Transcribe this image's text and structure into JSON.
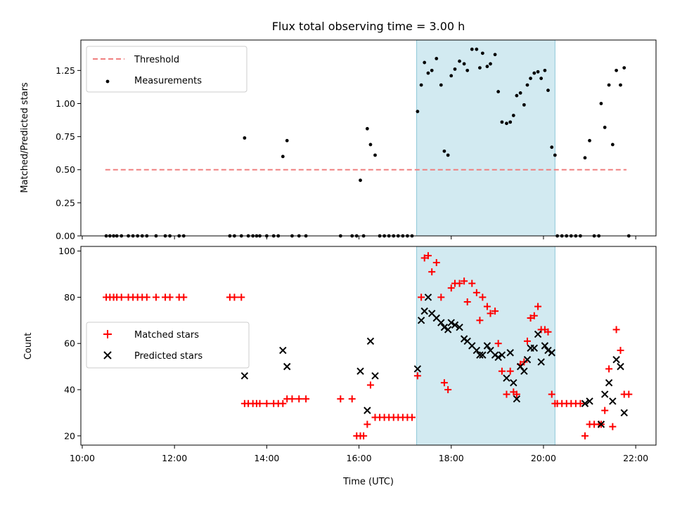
{
  "chart_data": [
    {
      "type": "scatter",
      "title": "Flux total observing time = 3.00 h",
      "xlabel": "",
      "ylabel": "Matched/Predicted stars",
      "xlim_hours": [
        9.97,
        22.44
      ],
      "ylim": [
        0,
        1.48
      ],
      "yticks": [
        0.0,
        0.25,
        0.5,
        0.75,
        1.0,
        1.25
      ],
      "ytick_labels": [
        "0.00",
        "0.25",
        "0.50",
        "0.75",
        "1.00",
        "1.25"
      ],
      "shaded_span_hours": [
        17.25,
        20.25
      ],
      "threshold": {
        "name": "Threshold",
        "y": 0.5,
        "x_range_hours": [
          10.5,
          21.8
        ],
        "color": "#f08080"
      },
      "legend_location": "upper-left",
      "series": [
        {
          "name": "Measurements",
          "color": "#000000",
          "points": [
            [
              10.52,
              0
            ],
            [
              10.6,
              0
            ],
            [
              10.68,
              0
            ],
            [
              10.75,
              0
            ],
            [
              10.85,
              0
            ],
            [
              11.0,
              0
            ],
            [
              11.1,
              0
            ],
            [
              11.2,
              0
            ],
            [
              11.3,
              0
            ],
            [
              11.4,
              0
            ],
            [
              11.6,
              0
            ],
            [
              11.8,
              0
            ],
            [
              11.9,
              0
            ],
            [
              12.1,
              0
            ],
            [
              12.2,
              0
            ],
            [
              13.2,
              0
            ],
            [
              13.3,
              0
            ],
            [
              13.45,
              0
            ],
            [
              13.52,
              0.74
            ],
            [
              13.6,
              0
            ],
            [
              13.7,
              0
            ],
            [
              13.78,
              0
            ],
            [
              13.85,
              0
            ],
            [
              14.0,
              0
            ],
            [
              14.15,
              0
            ],
            [
              14.25,
              0
            ],
            [
              14.35,
              0.6
            ],
            [
              14.44,
              0.72
            ],
            [
              14.55,
              0
            ],
            [
              14.7,
              0
            ],
            [
              14.85,
              0
            ],
            [
              15.6,
              0
            ],
            [
              15.85,
              0
            ],
            [
              15.95,
              0
            ],
            [
              16.03,
              0.42
            ],
            [
              16.1,
              0
            ],
            [
              16.18,
              0.81
            ],
            [
              16.25,
              0.69
            ],
            [
              16.35,
              0.61
            ],
            [
              16.45,
              0
            ],
            [
              16.55,
              0
            ],
            [
              16.65,
              0
            ],
            [
              16.75,
              0
            ],
            [
              16.85,
              0
            ],
            [
              16.95,
              0
            ],
            [
              17.05,
              0
            ],
            [
              17.15,
              0
            ],
            [
              17.27,
              0.94
            ],
            [
              17.35,
              1.14
            ],
            [
              17.42,
              1.31
            ],
            [
              17.5,
              1.23
            ],
            [
              17.58,
              1.25
            ],
            [
              17.68,
              1.34
            ],
            [
              17.78,
              1.14
            ],
            [
              17.85,
              0.64
            ],
            [
              17.93,
              0.61
            ],
            [
              18.0,
              1.21
            ],
            [
              18.08,
              1.26
            ],
            [
              18.18,
              1.32
            ],
            [
              18.28,
              1.3
            ],
            [
              18.35,
              1.25
            ],
            [
              18.45,
              1.41
            ],
            [
              18.55,
              1.41
            ],
            [
              18.62,
              1.27
            ],
            [
              18.68,
              1.38
            ],
            [
              18.78,
              1.28
            ],
            [
              18.85,
              1.3
            ],
            [
              18.95,
              1.37
            ],
            [
              19.02,
              1.09
            ],
            [
              19.1,
              0.86
            ],
            [
              19.2,
              0.85
            ],
            [
              19.28,
              0.86
            ],
            [
              19.35,
              0.91
            ],
            [
              19.42,
              1.06
            ],
            [
              19.5,
              1.08
            ],
            [
              19.58,
              0.99
            ],
            [
              19.65,
              1.14
            ],
            [
              19.72,
              1.19
            ],
            [
              19.8,
              1.23
            ],
            [
              19.88,
              1.24
            ],
            [
              19.95,
              1.19
            ],
            [
              20.03,
              1.25
            ],
            [
              20.1,
              1.1
            ],
            [
              20.18,
              0.67
            ],
            [
              20.25,
              0.61
            ],
            [
              20.3,
              0
            ],
            [
              20.4,
              0
            ],
            [
              20.5,
              0
            ],
            [
              20.6,
              0
            ],
            [
              20.7,
              0
            ],
            [
              20.8,
              0
            ],
            [
              20.9,
              0.59
            ],
            [
              21.0,
              0.72
            ],
            [
              21.1,
              0
            ],
            [
              21.2,
              0
            ],
            [
              21.25,
              1.0
            ],
            [
              21.33,
              0.82
            ],
            [
              21.42,
              1.14
            ],
            [
              21.5,
              0.69
            ],
            [
              21.58,
              1.25
            ],
            [
              21.67,
              1.14
            ],
            [
              21.75,
              1.27
            ],
            [
              21.85,
              0
            ]
          ]
        }
      ]
    },
    {
      "type": "scatter",
      "title": "",
      "xlabel": "Time (UTC)",
      "ylabel": "Count",
      "xlim_hours": [
        9.97,
        22.44
      ],
      "ylim": [
        16,
        102
      ],
      "yticks": [
        20,
        40,
        60,
        80,
        100
      ],
      "ytick_labels": [
        "20",
        "40",
        "60",
        "80",
        "100"
      ],
      "xticks_hours": [
        10,
        12,
        14,
        16,
        18,
        20,
        22
      ],
      "xtick_labels": [
        "10:00",
        "12:00",
        "14:00",
        "16:00",
        "18:00",
        "20:00",
        "22:00"
      ],
      "shaded_span_hours": [
        17.25,
        20.25
      ],
      "legend_location": "center-left",
      "series": [
        {
          "name": "Matched stars",
          "marker": "plus",
          "color": "#ff0000",
          "points": [
            [
              10.52,
              80
            ],
            [
              10.6,
              80
            ],
            [
              10.68,
              80
            ],
            [
              10.75,
              80
            ],
            [
              10.85,
              80
            ],
            [
              11.0,
              80
            ],
            [
              11.1,
              80
            ],
            [
              11.2,
              80
            ],
            [
              11.3,
              80
            ],
            [
              11.4,
              80
            ],
            [
              11.6,
              80
            ],
            [
              11.8,
              80
            ],
            [
              11.9,
              80
            ],
            [
              12.1,
              80
            ],
            [
              12.2,
              80
            ],
            [
              13.2,
              80
            ],
            [
              13.3,
              80
            ],
            [
              13.45,
              80
            ],
            [
              13.52,
              34
            ],
            [
              13.6,
              34
            ],
            [
              13.7,
              34
            ],
            [
              13.78,
              34
            ],
            [
              13.85,
              34
            ],
            [
              14.0,
              34
            ],
            [
              14.15,
              34
            ],
            [
              14.25,
              34
            ],
            [
              14.35,
              34
            ],
            [
              14.44,
              36
            ],
            [
              14.55,
              36
            ],
            [
              14.7,
              36
            ],
            [
              14.85,
              36
            ],
            [
              15.6,
              36
            ],
            [
              15.85,
              36
            ],
            [
              15.95,
              20
            ],
            [
              16.03,
              20
            ],
            [
              16.1,
              20
            ],
            [
              16.18,
              25
            ],
            [
              16.25,
              42
            ],
            [
              16.35,
              28
            ],
            [
              16.45,
              28
            ],
            [
              16.55,
              28
            ],
            [
              16.65,
              28
            ],
            [
              16.75,
              28
            ],
            [
              16.85,
              28
            ],
            [
              16.95,
              28
            ],
            [
              17.05,
              28
            ],
            [
              17.15,
              28
            ],
            [
              17.27,
              46
            ],
            [
              17.35,
              80
            ],
            [
              17.42,
              97
            ],
            [
              17.5,
              98
            ],
            [
              17.58,
              91
            ],
            [
              17.68,
              95
            ],
            [
              17.78,
              80
            ],
            [
              17.85,
              43
            ],
            [
              17.93,
              40
            ],
            [
              18.0,
              84
            ],
            [
              18.08,
              86
            ],
            [
              18.18,
              86
            ],
            [
              18.28,
              87
            ],
            [
              18.35,
              78
            ],
            [
              18.45,
              86
            ],
            [
              18.55,
              82
            ],
            [
              18.62,
              70
            ],
            [
              18.68,
              80
            ],
            [
              18.78,
              76
            ],
            [
              18.85,
              73
            ],
            [
              18.95,
              74
            ],
            [
              19.02,
              60
            ],
            [
              19.1,
              48
            ],
            [
              19.2,
              38
            ],
            [
              19.28,
              48
            ],
            [
              19.35,
              39
            ],
            [
              19.42,
              38
            ],
            [
              19.5,
              51
            ],
            [
              19.58,
              52
            ],
            [
              19.65,
              61
            ],
            [
              19.72,
              71
            ],
            [
              19.8,
              72
            ],
            [
              19.88,
              76
            ],
            [
              19.95,
              66
            ],
            [
              20.03,
              66
            ],
            [
              20.1,
              65
            ],
            [
              20.18,
              38
            ],
            [
              20.25,
              34
            ],
            [
              20.3,
              34
            ],
            [
              20.4,
              34
            ],
            [
              20.5,
              34
            ],
            [
              20.6,
              34
            ],
            [
              20.7,
              34
            ],
            [
              20.8,
              34
            ],
            [
              20.9,
              20
            ],
            [
              21.0,
              25
            ],
            [
              21.1,
              25
            ],
            [
              21.2,
              25
            ],
            [
              21.25,
              25
            ],
            [
              21.33,
              31
            ],
            [
              21.42,
              49
            ],
            [
              21.5,
              24
            ],
            [
              21.58,
              66
            ],
            [
              21.67,
              57
            ],
            [
              21.75,
              38
            ],
            [
              21.85,
              38
            ]
          ]
        },
        {
          "name": "Predicted stars",
          "marker": "x",
          "color": "#000000",
          "points": [
            [
              13.52,
              46
            ],
            [
              14.35,
              57
            ],
            [
              14.44,
              50
            ],
            [
              16.03,
              48
            ],
            [
              16.18,
              31
            ],
            [
              16.25,
              61
            ],
            [
              16.35,
              46
            ],
            [
              17.27,
              49
            ],
            [
              17.35,
              70
            ],
            [
              17.42,
              74
            ],
            [
              17.5,
              80
            ],
            [
              17.58,
              73
            ],
            [
              17.68,
              71
            ],
            [
              17.78,
              69
            ],
            [
              17.85,
              67
            ],
            [
              17.93,
              66
            ],
            [
              18.0,
              69
            ],
            [
              18.08,
              68
            ],
            [
              18.18,
              67
            ],
            [
              18.28,
              62
            ],
            [
              18.35,
              61
            ],
            [
              18.45,
              59
            ],
            [
              18.55,
              57
            ],
            [
              18.62,
              55
            ],
            [
              18.68,
              55
            ],
            [
              18.78,
              59
            ],
            [
              18.85,
              57
            ],
            [
              18.95,
              55
            ],
            [
              19.02,
              54
            ],
            [
              19.1,
              55
            ],
            [
              19.2,
              45
            ],
            [
              19.28,
              56
            ],
            [
              19.35,
              43
            ],
            [
              19.42,
              36
            ],
            [
              19.5,
              50
            ],
            [
              19.58,
              48
            ],
            [
              19.65,
              53
            ],
            [
              19.72,
              58
            ],
            [
              19.8,
              58
            ],
            [
              19.88,
              64
            ],
            [
              19.95,
              52
            ],
            [
              20.03,
              59
            ],
            [
              20.1,
              57
            ],
            [
              20.18,
              56
            ],
            [
              20.9,
              34
            ],
            [
              21.0,
              35
            ],
            [
              21.25,
              25
            ],
            [
              21.33,
              38
            ],
            [
              21.42,
              43
            ],
            [
              21.5,
              35
            ],
            [
              21.58,
              53
            ],
            [
              21.67,
              50
            ],
            [
              21.75,
              30
            ]
          ]
        }
      ]
    }
  ]
}
